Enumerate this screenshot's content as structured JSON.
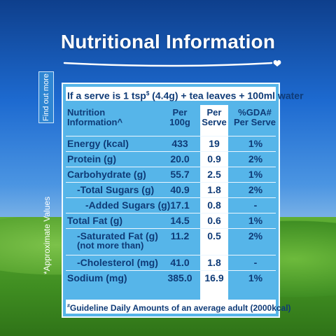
{
  "title": "Nutritional Information",
  "find_out_more": "Find out more",
  "approximate_values": "*Approximate Values",
  "serve_line": {
    "prefix": "If a serve is 1 tsp",
    "mark": "$",
    "suffix": " (4.4g) + tea leaves + 100ml water"
  },
  "headers": {
    "nutrition_line1": "Nutrition",
    "nutrition_line2": "Information^",
    "per100_line1": "Per",
    "per100_line2": "100g",
    "perserve_line1": "Per",
    "perserve_line2": "Serve",
    "gda_line1": "%GDA#",
    "gda_line2": "Per Serve"
  },
  "rows": [
    {
      "name": "Energy (kcal)",
      "per100": "433",
      "perserve": "19",
      "gda": "1%"
    },
    {
      "name": "Protein (g)",
      "per100": "20.0",
      "perserve": "0.9",
      "gda": "2%"
    },
    {
      "name": "Carbohydrate (g)",
      "per100": "55.7",
      "perserve": "2.5",
      "gda": "1%"
    },
    {
      "name": "-Total Sugars (g)",
      "per100": "40.9",
      "perserve": "1.8",
      "gda": "2%"
    },
    {
      "name": "-Added Sugars (g)",
      "per100": "17.1",
      "perserve": "0.8",
      "gda": "-"
    },
    {
      "name": "Total Fat (g)",
      "per100": "14.5",
      "perserve": "0.6",
      "gda": "1%"
    },
    {
      "name": "-Saturated Fat (g)",
      "sub": "(not more than)",
      "per100": "11.2",
      "perserve": "0.5",
      "gda": "2%"
    },
    {
      "name": "-Cholesterol (mg)",
      "per100": "41.0",
      "perserve": "1.8",
      "gda": "-"
    },
    {
      "name": "Sodium (mg)",
      "per100": "385.0",
      "perserve": "16.9",
      "gda": "1%"
    }
  ],
  "footer": {
    "mark": "#",
    "text": "Guideline Daily Amounts of an average adult (2000kcal)"
  }
}
